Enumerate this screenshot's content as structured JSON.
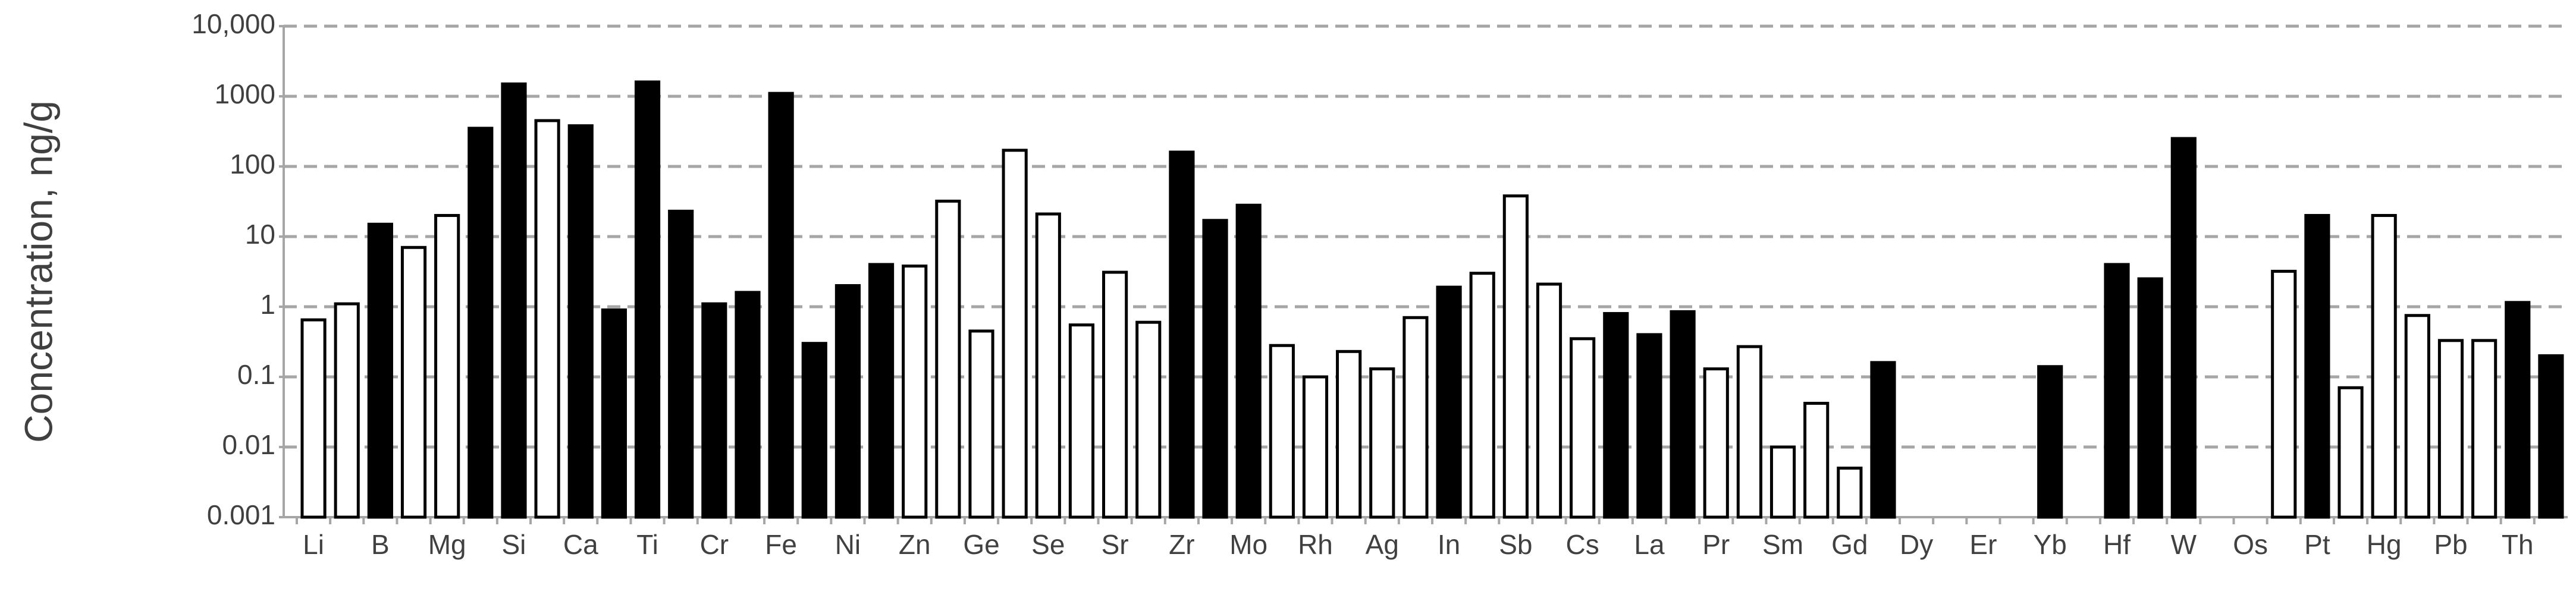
{
  "chart_data": {
    "type": "bar",
    "y_label": "Concentration, ng/g",
    "log_scale": true,
    "grid": true,
    "categories": [
      "Li",
      null,
      "B",
      null,
      "Mg",
      null,
      "Si",
      null,
      "Ca",
      null,
      "Ti",
      null,
      "Cr",
      null,
      "Fe",
      null,
      "Ni",
      null,
      "Zn",
      null,
      "Ge",
      null,
      "Se",
      null,
      "Sr",
      null,
      "Zr",
      null,
      "Mo",
      null,
      "Rh",
      null,
      "Ag",
      null,
      "In",
      null,
      "Sb",
      null,
      "Cs",
      null,
      "La",
      null,
      "Pr",
      null,
      "Sm",
      null,
      "Gd",
      null,
      "Dy",
      null,
      "Er",
      null,
      "Yb",
      null,
      "Hf",
      null,
      "W",
      null,
      "Os",
      null,
      "Pt",
      null,
      "Hg",
      null,
      "Pb",
      null,
      "Th",
      null
    ],
    "values": [
      0.65,
      1.1,
      15,
      7,
      20,
      350,
      1500,
      450,
      380,
      0.9,
      1600,
      23,
      1.1,
      1.6,
      1100,
      0.3,
      2,
      4,
      3.8,
      32,
      0.45,
      170,
      21,
      0.55,
      3.1,
      0.6,
      160,
      17,
      28,
      0.28,
      0.1,
      0.23,
      0.13,
      0.7,
      1.9,
      3,
      38,
      2.1,
      0.35,
      0.8,
      0.4,
      0.85,
      0.13,
      0.27,
      0.01,
      0.042,
      0.005,
      0.16,
      null,
      null,
      null,
      null,
      0.14,
      null,
      4,
      2.5,
      250,
      null,
      null,
      3.2,
      20,
      0.07,
      20,
      0.75,
      0.33,
      0.33,
      1.15,
      0.2
    ],
    "colors": [
      "#ffffff",
      "#ffffff",
      "#000000",
      "#ffffff",
      "#ffffff",
      "#000000",
      "#000000",
      "#ffffff",
      "#000000",
      "#000000",
      "#000000",
      "#000000",
      "#000000",
      "#000000",
      "#000000",
      "#000000",
      "#000000",
      "#000000",
      "#ffffff",
      "#ffffff",
      "#ffffff",
      "#ffffff",
      "#ffffff",
      "#ffffff",
      "#ffffff",
      "#ffffff",
      "#000000",
      "#000000",
      "#000000",
      "#ffffff",
      "#ffffff",
      "#ffffff",
      "#ffffff",
      "#ffffff",
      "#000000",
      "#ffffff",
      "#ffffff",
      "#ffffff",
      "#ffffff",
      "#000000",
      "#000000",
      "#000000",
      "#ffffff",
      "#ffffff",
      "#ffffff",
      "#ffffff",
      "#ffffff",
      "#000000",
      "#000000",
      "#000000",
      "#000000",
      "#000000",
      "#000000",
      "#000000",
      "#000000",
      "#000000",
      "#000000",
      "#000000",
      "#000000",
      "#ffffff",
      "#000000",
      "#ffffff",
      "#ffffff",
      "#ffffff",
      "#ffffff",
      "#ffffff",
      "#000000",
      "#000000"
    ],
    "ylim": [
      0.001,
      10000
    ],
    "yticks": [
      0.001,
      0.01,
      0.1,
      1,
      10,
      100,
      1000,
      {
        "value": 10000,
        "label": "10,000"
      }
    ]
  }
}
